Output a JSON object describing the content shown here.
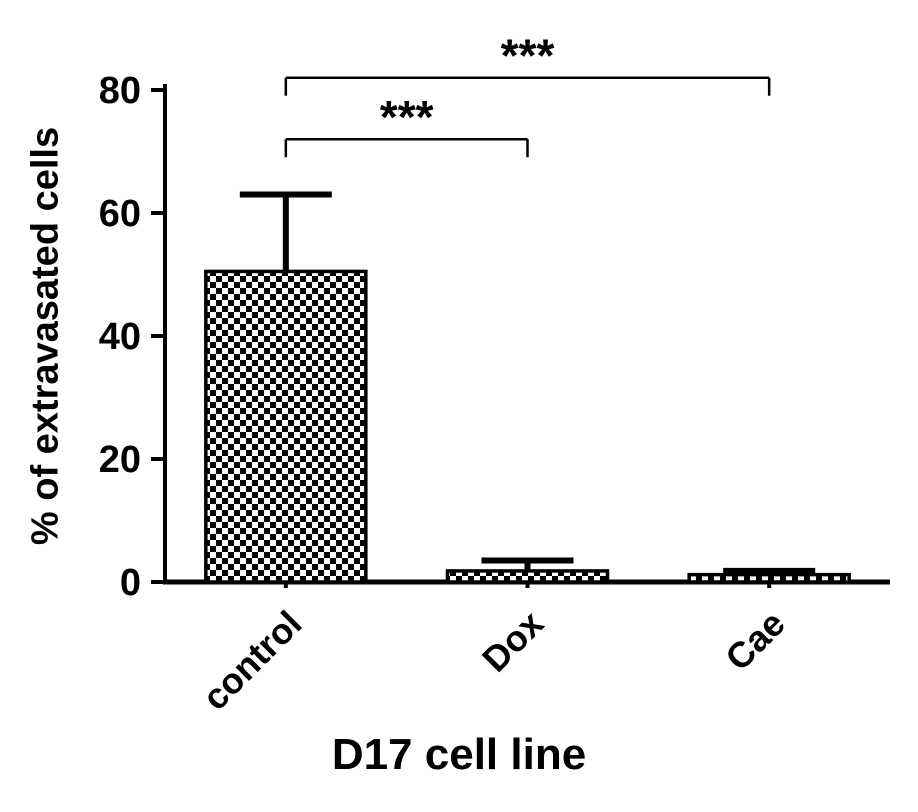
{
  "figure": {
    "background": "#ffffff"
  },
  "chart_data": {
    "type": "bar",
    "title": "",
    "xlabel": "D17 cell line",
    "ylabel": "% of extravasated cells",
    "categories": [
      "control",
      "Dox",
      "Cae"
    ],
    "values": [
      50.5,
      1.8,
      1.2
    ],
    "errors_plus": [
      12.5,
      1.7,
      0.6
    ],
    "ylim": [
      0,
      80
    ],
    "yticks": [
      0,
      20,
      40,
      60,
      80
    ],
    "grid": false,
    "legend": "none",
    "bar_fill_pattern": "checkerboard",
    "colors": {
      "axis": "#000000",
      "text": "#000000",
      "pattern": "#000000",
      "background": "#ffffff"
    },
    "significance_brackets": [
      {
        "from": 0,
        "to": 1,
        "from_category": "control",
        "to_category": "Dox",
        "label": "***",
        "y": 72
      },
      {
        "from": 0,
        "to": 2,
        "from_category": "control",
        "to_category": "Cae",
        "label": "***",
        "y": 82
      }
    ]
  }
}
